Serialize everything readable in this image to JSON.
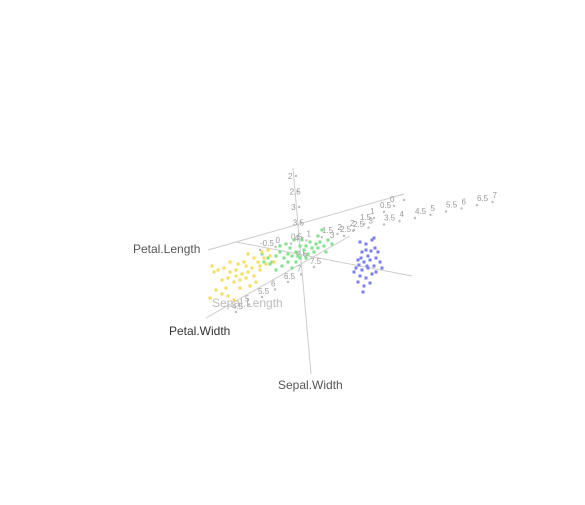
{
  "chart_data": {
    "type": "scatter",
    "projection": "3d",
    "axes": [
      {
        "name": "Sepal.Length",
        "ticks": [
          "4.5",
          "5",
          "5.5",
          "6",
          "6.5",
          "7",
          "7.5"
        ]
      },
      {
        "name": "Sepal.Width",
        "ticks": [
          "2",
          "2.5",
          "3",
          "3.5",
          "4",
          "4.5"
        ]
      },
      {
        "name": "Petal.Length",
        "ticks": [
          "-0.5",
          "0",
          "0.5",
          "1",
          "1.5",
          "2",
          "2.5",
          "3",
          "3.5",
          "4",
          "4.5",
          "5",
          "5.5",
          "6",
          "6.5",
          "7"
        ]
      },
      {
        "name": "Petal.Width",
        "ticks": [
          "0",
          "0.5",
          "1",
          "1.5",
          "2",
          "2.5",
          "3"
        ]
      }
    ],
    "axis_titles": {
      "petal_length": "Petal.Length",
      "sepal_length": "Sepal.Length",
      "petal_width": "Petal.Width",
      "sepal_width": "Sepal.Width"
    },
    "series": [
      {
        "color": "#7b7ef0",
        "points": [
          [
            360,
            242
          ],
          [
            366,
            244
          ],
          [
            372,
            240
          ],
          [
            375,
            248
          ],
          [
            362,
            252
          ],
          [
            368,
            256
          ],
          [
            358,
            260
          ],
          [
            364,
            262
          ],
          [
            370,
            260
          ],
          [
            376,
            258
          ],
          [
            356,
            268
          ],
          [
            362,
            270
          ],
          [
            368,
            268
          ],
          [
            374,
            266
          ],
          [
            380,
            262
          ],
          [
            360,
            276
          ],
          [
            366,
            278
          ],
          [
            372,
            274
          ],
          [
            358,
            282
          ],
          [
            364,
            286
          ],
          [
            370,
            283
          ],
          [
            376,
            272
          ],
          [
            354,
            272
          ],
          [
            378,
            252
          ],
          [
            366,
            250
          ],
          [
            363,
            292
          ],
          [
            382,
            268
          ],
          [
            359,
            265
          ],
          [
            371,
            251
          ],
          [
            374,
            238
          ],
          [
            367,
            266
          ],
          [
            361,
            258
          ]
        ]
      },
      {
        "color": "#7ee08a",
        "points": [
          [
            262,
            254
          ],
          [
            268,
            258
          ],
          [
            272,
            262
          ],
          [
            276,
            256
          ],
          [
            280,
            252
          ],
          [
            284,
            258
          ],
          [
            288,
            262
          ],
          [
            292,
            256
          ],
          [
            296,
            252
          ],
          [
            300,
            246
          ],
          [
            304,
            250
          ],
          [
            308,
            254
          ],
          [
            312,
            248
          ],
          [
            316,
            244
          ],
          [
            320,
            242
          ],
          [
            324,
            246
          ],
          [
            328,
            240
          ],
          [
            296,
            262
          ],
          [
            290,
            248
          ],
          [
            286,
            244
          ],
          [
            300,
            258
          ],
          [
            306,
            246
          ],
          [
            314,
            252
          ],
          [
            318,
            236
          ],
          [
            322,
            230
          ],
          [
            282,
            266
          ],
          [
            276,
            270
          ],
          [
            270,
            264
          ],
          [
            294,
            240
          ],
          [
            302,
            240
          ],
          [
            310,
            242
          ],
          [
            326,
            252
          ],
          [
            292,
            268
          ],
          [
            298,
            256
          ],
          [
            306,
            258
          ],
          [
            280,
            246
          ],
          [
            332,
            244
          ],
          [
            288,
            254
          ],
          [
            318,
            248
          ],
          [
            264,
            262
          ]
        ]
      },
      {
        "color": "#f5dc5a",
        "points": [
          [
            212,
            266
          ],
          [
            218,
            270
          ],
          [
            224,
            268
          ],
          [
            230,
            272
          ],
          [
            236,
            270
          ],
          [
            242,
            274
          ],
          [
            248,
            272
          ],
          [
            254,
            276
          ],
          [
            260,
            270
          ],
          [
            266,
            264
          ],
          [
            222,
            280
          ],
          [
            228,
            278
          ],
          [
            234,
            282
          ],
          [
            240,
            280
          ],
          [
            246,
            278
          ],
          [
            252,
            268
          ],
          [
            258,
            262
          ],
          [
            264,
            258
          ],
          [
            270,
            256
          ],
          [
            274,
            262
          ],
          [
            244,
            262
          ],
          [
            238,
            264
          ],
          [
            230,
            262
          ],
          [
            256,
            282
          ],
          [
            250,
            286
          ],
          [
            216,
            290
          ],
          [
            222,
            294
          ],
          [
            228,
            296
          ],
          [
            234,
            300
          ],
          [
            214,
            272
          ],
          [
            226,
            288
          ],
          [
            262,
            252
          ],
          [
            268,
            250
          ],
          [
            246,
            266
          ],
          [
            254,
            258
          ],
          [
            210,
            298
          ],
          [
            240,
            288
          ],
          [
            260,
            266
          ],
          [
            236,
            276
          ],
          [
            248,
            254
          ]
        ]
      }
    ]
  }
}
